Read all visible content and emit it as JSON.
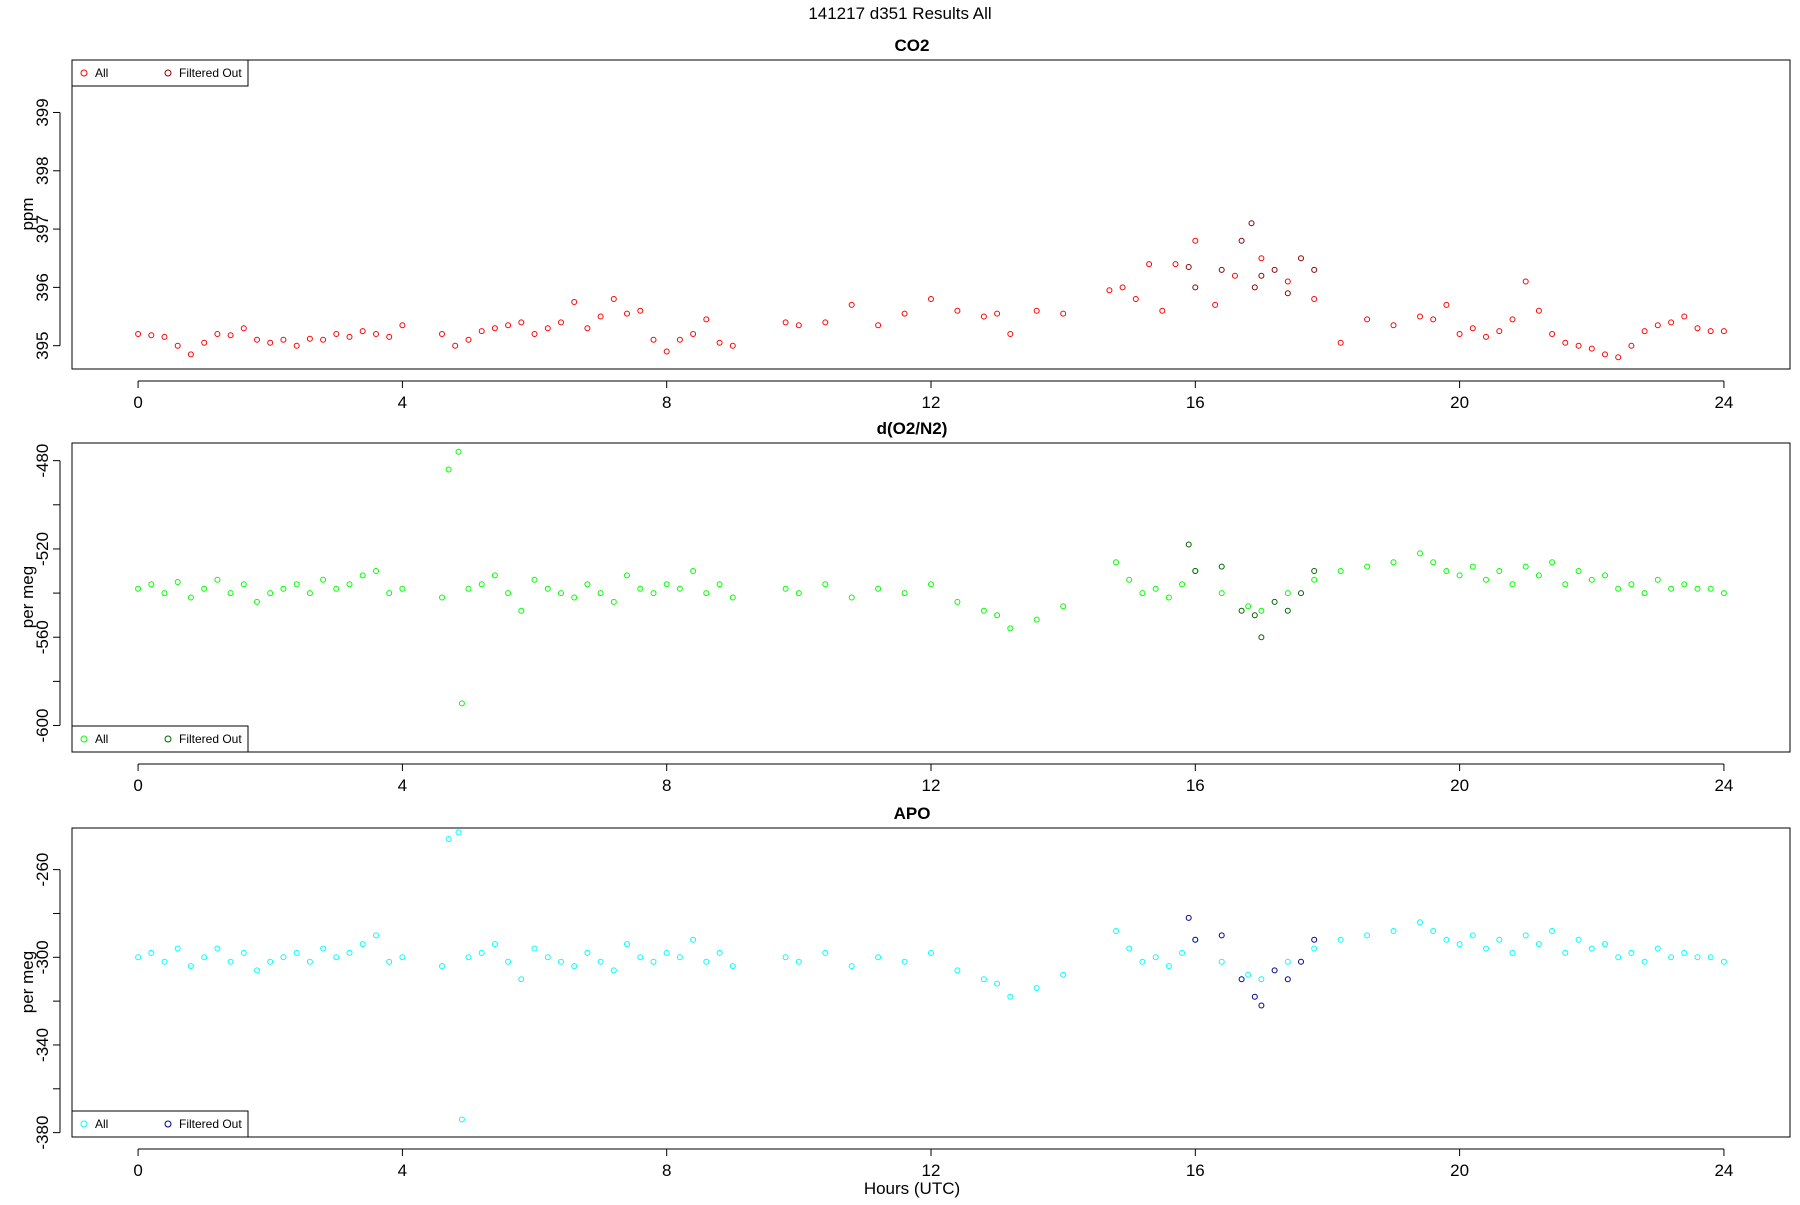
{
  "figure": {
    "title": "141217   d351   Results All",
    "xlabel": "Hours (UTC)"
  },
  "chart_data": [
    {
      "type": "scatter",
      "title": "CO2",
      "ylabel": "ppm",
      "xlim": [
        -1,
        25
      ],
      "ylim": [
        394.6,
        399.9
      ],
      "x_ticks": [
        0,
        4,
        8,
        12,
        16,
        20,
        24
      ],
      "y_ticks": [
        395,
        396,
        397,
        398,
        399
      ],
      "grid": false,
      "legend": {
        "position": "top-left",
        "entries": [
          "All",
          "Filtered Out"
        ]
      },
      "series": [
        {
          "name": "All",
          "color": "#ff0000",
          "x": [
            0.0,
            0.2,
            0.4,
            0.6,
            0.8,
            1.0,
            1.2,
            1.4,
            1.6,
            1.8,
            2.0,
            2.2,
            2.4,
            2.6,
            2.8,
            3.0,
            3.2,
            3.4,
            3.6,
            3.8,
            4.0,
            4.6,
            4.8,
            5.0,
            5.2,
            5.4,
            5.6,
            5.8,
            6.0,
            6.2,
            6.4,
            6.6,
            6.8,
            7.0,
            7.2,
            7.4,
            7.6,
            7.8,
            8.0,
            8.2,
            8.4,
            8.6,
            8.8,
            9.0,
            9.8,
            10.0,
            10.4,
            10.8,
            11.2,
            11.6,
            12.0,
            12.4,
            12.8,
            13.0,
            13.2,
            13.6,
            14.0,
            14.7,
            14.9,
            15.1,
            15.3,
            15.5,
            15.7,
            16.0,
            16.3,
            16.6,
            17.0,
            17.4,
            17.8,
            18.2,
            18.6,
            19.0,
            19.4,
            19.6,
            19.8,
            20.0,
            20.2,
            20.4,
            20.6,
            20.8,
            21.0,
            21.2,
            21.4,
            21.6,
            21.8,
            22.0,
            22.2,
            22.4,
            22.6,
            22.8,
            23.0,
            23.2,
            23.4,
            23.6,
            23.8,
            24.0
          ],
          "y": [
            395.2,
            395.18,
            395.15,
            395.0,
            394.85,
            395.05,
            395.2,
            395.18,
            395.3,
            395.1,
            395.05,
            395.1,
            395.0,
            395.12,
            395.1,
            395.2,
            395.15,
            395.25,
            395.2,
            395.15,
            395.35,
            395.2,
            395.0,
            395.1,
            395.25,
            395.3,
            395.35,
            395.4,
            395.2,
            395.3,
            395.4,
            395.75,
            395.3,
            395.5,
            395.8,
            395.55,
            395.6,
            395.1,
            394.9,
            395.1,
            395.2,
            395.45,
            395.05,
            395.0,
            395.4,
            395.35,
            395.4,
            395.7,
            395.35,
            395.55,
            395.8,
            395.6,
            395.5,
            395.55,
            395.2,
            395.6,
            395.55,
            395.95,
            396.0,
            395.8,
            396.4,
            395.6,
            396.4,
            396.8,
            395.7,
            396.2,
            396.5,
            396.1,
            395.8,
            395.05,
            395.45,
            395.35,
            395.5,
            395.45,
            395.7,
            395.2,
            395.3,
            395.15,
            395.25,
            395.45,
            396.1,
            395.6,
            395.2,
            395.05,
            395.0,
            394.95,
            394.85,
            394.8,
            395.0,
            395.25,
            395.35,
            395.4,
            395.5,
            395.3,
            395.25,
            395.25
          ]
        },
        {
          "name": "Filtered Out",
          "color": "#8b0000",
          "x": [
            15.9,
            16.0,
            16.4,
            16.7,
            16.85,
            16.9,
            17.0,
            17.2,
            17.4,
            17.6,
            17.8
          ],
          "y": [
            396.35,
            396.0,
            396.3,
            396.8,
            397.1,
            396.0,
            396.2,
            396.3,
            395.9,
            396.5,
            396.3
          ]
        }
      ]
    },
    {
      "type": "scatter",
      "title": "d(O2/N2)",
      "ylabel": "per meg",
      "xlim": [
        -1,
        25
      ],
      "ylim": [
        -612,
        -472
      ],
      "x_ticks": [
        0,
        4,
        8,
        12,
        16,
        20,
        24
      ],
      "y_ticks": [
        -480,
        -500,
        -520,
        -540,
        -560,
        -580,
        -600
      ],
      "y_ticks_labeled": [
        -480,
        -520,
        -560,
        -600
      ],
      "grid": false,
      "legend": {
        "position": "bottom-left",
        "entries": [
          "All",
          "Filtered Out"
        ]
      },
      "series": [
        {
          "name": "All",
          "color": "#00ff00",
          "x": [
            0.0,
            0.2,
            0.4,
            0.6,
            0.8,
            1.0,
            1.2,
            1.4,
            1.6,
            1.8,
            2.0,
            2.2,
            2.4,
            2.6,
            2.8,
            3.0,
            3.2,
            3.4,
            3.6,
            3.8,
            4.0,
            4.6,
            4.7,
            4.85,
            4.9,
            5.0,
            5.2,
            5.4,
            5.6,
            5.8,
            6.0,
            6.2,
            6.4,
            6.6,
            6.8,
            7.0,
            7.2,
            7.4,
            7.6,
            7.8,
            8.0,
            8.2,
            8.4,
            8.6,
            8.8,
            9.0,
            9.8,
            10.0,
            10.4,
            10.8,
            11.2,
            11.6,
            12.0,
            12.4,
            12.8,
            13.0,
            13.2,
            13.6,
            14.0,
            14.8,
            15.0,
            15.2,
            15.4,
            15.6,
            15.8,
            16.0,
            16.4,
            16.8,
            17.0,
            17.4,
            17.8,
            18.2,
            18.6,
            19.0,
            19.4,
            19.6,
            19.8,
            20.0,
            20.2,
            20.4,
            20.6,
            20.8,
            21.0,
            21.2,
            21.4,
            21.6,
            21.8,
            22.0,
            22.2,
            22.4,
            22.6,
            22.8,
            23.0,
            23.2,
            23.4,
            23.6,
            23.8,
            24.0
          ],
          "y": [
            -538,
            -536,
            -540,
            -535,
            -542,
            -538,
            -534,
            -540,
            -536,
            -544,
            -540,
            -538,
            -536,
            -540,
            -534,
            -538,
            -536,
            -532,
            -530,
            -540,
            -538,
            -542,
            -484,
            -476,
            -590,
            -538,
            -536,
            -532,
            -540,
            -548,
            -534,
            -538,
            -540,
            -542,
            -536,
            -540,
            -544,
            -532,
            -538,
            -540,
            -536,
            -538,
            -530,
            -540,
            -536,
            -542,
            -538,
            -540,
            -536,
            -542,
            -538,
            -540,
            -536,
            -544,
            -548,
            -550,
            -556,
            -552,
            -546,
            -526,
            -534,
            -540,
            -538,
            -542,
            -536,
            -530,
            -540,
            -546,
            -548,
            -540,
            -534,
            -530,
            -528,
            -526,
            -522,
            -526,
            -530,
            -532,
            -528,
            -534,
            -530,
            -536,
            -528,
            -532,
            -526,
            -536,
            -530,
            -534,
            -532,
            -538,
            -536,
            -540,
            -534,
            -538,
            -536,
            -538,
            -538,
            -540
          ]
        },
        {
          "name": "Filtered Out",
          "color": "#006400",
          "x": [
            15.9,
            16.0,
            16.4,
            16.7,
            16.9,
            17.0,
            17.2,
            17.4,
            17.6,
            17.8
          ],
          "y": [
            -518,
            -530,
            -528,
            -548,
            -550,
            -560,
            -544,
            -548,
            -540,
            -530
          ]
        }
      ]
    },
    {
      "type": "scatter",
      "title": "APO",
      "ylabel": "per meg",
      "xlim": [
        -1,
        25
      ],
      "ylim": [
        -382,
        -241
      ],
      "x_ticks": [
        0,
        4,
        8,
        12,
        16,
        20,
        24
      ],
      "y_ticks": [
        -260,
        -280,
        -300,
        -320,
        -340,
        -360,
        -380
      ],
      "y_ticks_labeled": [
        -260,
        -300,
        -340,
        -380
      ],
      "grid": false,
      "legend": {
        "position": "bottom-left",
        "entries": [
          "All",
          "Filtered Out"
        ]
      },
      "series": [
        {
          "name": "All",
          "color": "#00ffff",
          "x": [
            0.0,
            0.2,
            0.4,
            0.6,
            0.8,
            1.0,
            1.2,
            1.4,
            1.6,
            1.8,
            2.0,
            2.2,
            2.4,
            2.6,
            2.8,
            3.0,
            3.2,
            3.4,
            3.6,
            3.8,
            4.0,
            4.6,
            4.7,
            4.85,
            4.9,
            5.0,
            5.2,
            5.4,
            5.6,
            5.8,
            6.0,
            6.2,
            6.4,
            6.6,
            6.8,
            7.0,
            7.2,
            7.4,
            7.6,
            7.8,
            8.0,
            8.2,
            8.4,
            8.6,
            8.8,
            9.0,
            9.8,
            10.0,
            10.4,
            10.8,
            11.2,
            11.6,
            12.0,
            12.4,
            12.8,
            13.0,
            13.2,
            13.6,
            14.0,
            14.8,
            15.0,
            15.2,
            15.4,
            15.6,
            15.8,
            16.0,
            16.4,
            16.8,
            17.0,
            17.4,
            17.8,
            18.2,
            18.6,
            19.0,
            19.4,
            19.6,
            19.8,
            20.0,
            20.2,
            20.4,
            20.6,
            20.8,
            21.0,
            21.2,
            21.4,
            21.6,
            21.8,
            22.0,
            22.2,
            22.4,
            22.6,
            22.8,
            23.0,
            23.2,
            23.4,
            23.6,
            23.8,
            24.0
          ],
          "y": [
            -300,
            -298,
            -302,
            -296,
            -304,
            -300,
            -296,
            -302,
            -298,
            -306,
            -302,
            -300,
            -298,
            -302,
            -296,
            -300,
            -298,
            -294,
            -290,
            -302,
            -300,
            -304,
            -246,
            -243,
            -374,
            -300,
            -298,
            -294,
            -302,
            -310,
            -296,
            -300,
            -302,
            -304,
            -298,
            -302,
            -306,
            -294,
            -300,
            -302,
            -298,
            -300,
            -292,
            -302,
            -298,
            -304,
            -300,
            -302,
            -298,
            -304,
            -300,
            -302,
            -298,
            -306,
            -310,
            -312,
            -318,
            -314,
            -308,
            -288,
            -296,
            -302,
            -300,
            -304,
            -298,
            -292,
            -302,
            -308,
            -310,
            -302,
            -296,
            -292,
            -290,
            -288,
            -284,
            -288,
            -292,
            -294,
            -290,
            -296,
            -292,
            -298,
            -290,
            -294,
            -288,
            -298,
            -292,
            -296,
            -294,
            -300,
            -298,
            -302,
            -296,
            -300,
            -298,
            -300,
            -300,
            -302
          ]
        },
        {
          "name": "Filtered Out",
          "color": "#00008b",
          "x": [
            15.9,
            16.0,
            16.4,
            16.7,
            16.9,
            17.0,
            17.2,
            17.4,
            17.6,
            17.8
          ],
          "y": [
            -282,
            -292,
            -290,
            -310,
            -318,
            -322,
            -306,
            -310,
            -302,
            -292
          ]
        }
      ]
    }
  ]
}
